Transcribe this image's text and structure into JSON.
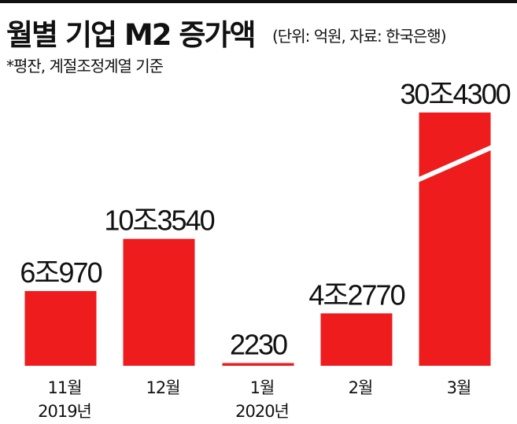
{
  "header": {
    "title": "월별 기업 M2 증가액",
    "unit": "(단위: 억원, 자료: 한국은행)",
    "note": "*평잔, 계절조정계열 기준"
  },
  "colors": {
    "bar": "#ee1c1c",
    "text": "#111111"
  },
  "chart_data": {
    "type": "bar",
    "title": "월별 기업 M2 증가액",
    "unit": "억원",
    "categories": [
      "11월",
      "12월",
      "1월",
      "2월",
      "3월"
    ],
    "year_labels": [
      "2019년",
      "",
      "2020년",
      "",
      ""
    ],
    "values": [
      60970,
      103540,
      2230,
      42770,
      304300
    ],
    "value_labels": [
      "6조970",
      "10조3540",
      "2230",
      "4조2770",
      "30조4300"
    ],
    "axis_break_category": "3월",
    "legend": "none",
    "grid": false
  }
}
